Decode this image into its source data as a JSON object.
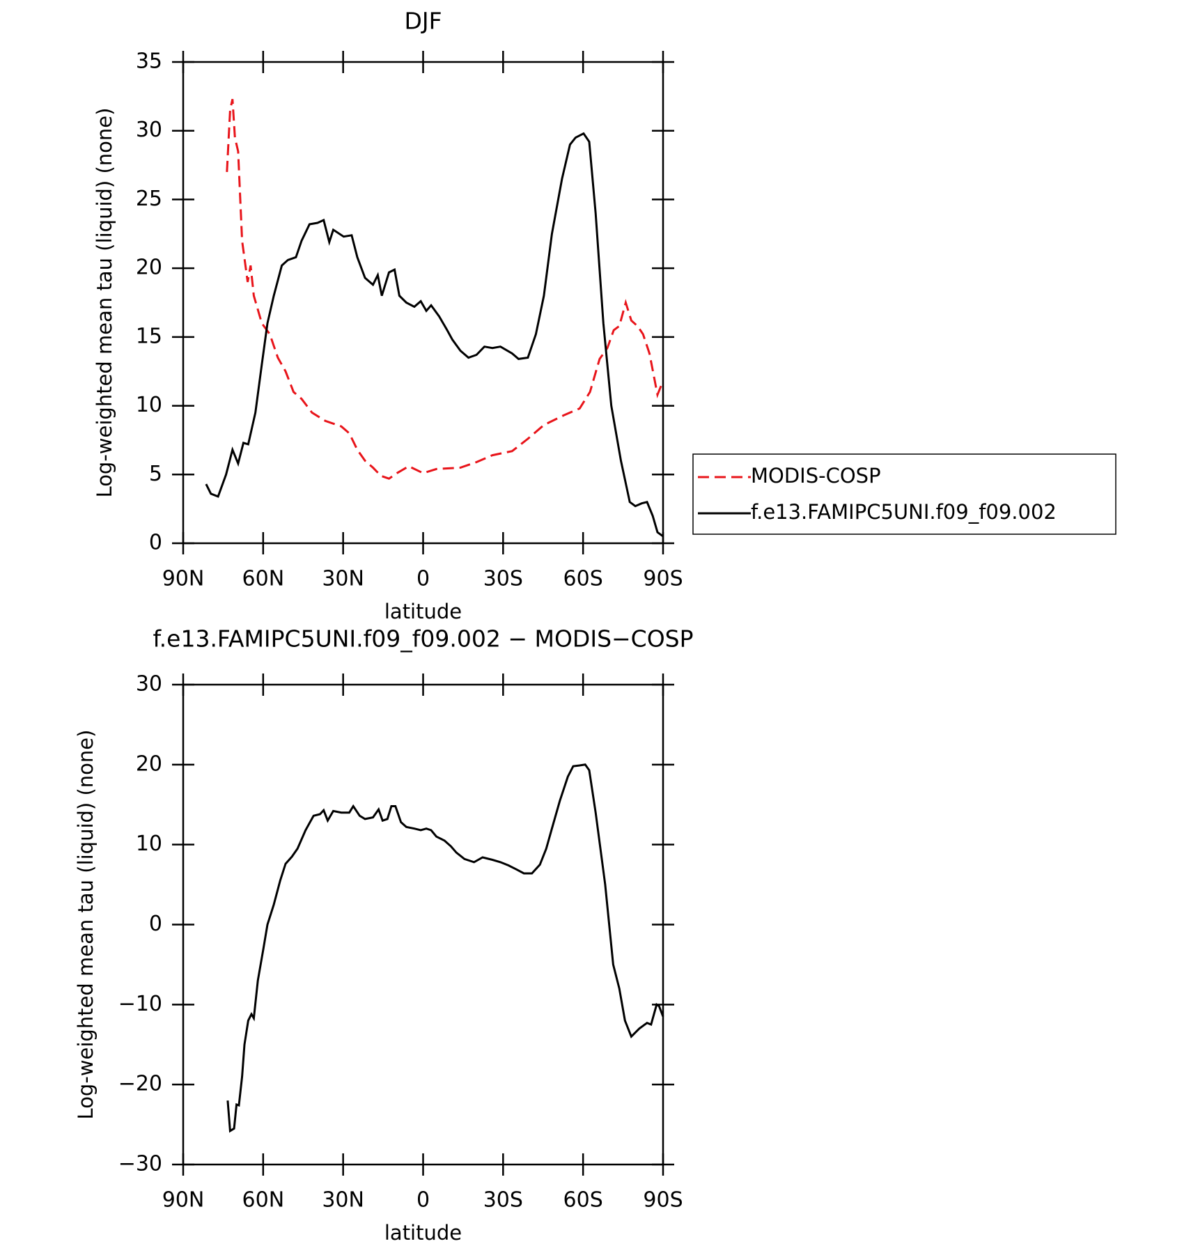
{
  "chart_data": [
    {
      "type": "line",
      "title": "DJF",
      "xlabel": "latitude",
      "ylabel": "Log-weighted mean tau (liquid) (none)",
      "xlim": [
        90,
        -90
      ],
      "xticks": [
        {
          "value": 90,
          "label": "90N"
        },
        {
          "value": 60,
          "label": "60N"
        },
        {
          "value": 30,
          "label": "30N"
        },
        0,
        {
          "value": -30,
          "label": "30S"
        },
        {
          "value": -60,
          "label": "60S"
        },
        {
          "value": -90,
          "label": "90S"
        }
      ],
      "ylim": [
        0,
        35
      ],
      "yticks": [
        0,
        5,
        10,
        15,
        20,
        25,
        30,
        35
      ],
      "legend": "right",
      "series": [
        {
          "name": "MODIS-COSP",
          "color": "#e8141a",
          "dash": true,
          "x": [
            73.6,
            72.4,
            71.5,
            70.6,
            69.4,
            67.9,
            65.8,
            64.7,
            63.5,
            60.5,
            57.5,
            54.5,
            51.6,
            48.6,
            45.6,
            41.7,
            36.7,
            30.7,
            27.7,
            24.7,
            21.8,
            18.8,
            15.8,
            12.8,
            9.8,
            5.4,
            0,
            -5,
            -14,
            -20,
            -26,
            -33.4,
            -39.3,
            -45.3,
            -52.7,
            -58.7,
            -62.6,
            -66.2,
            -69.1,
            -71.5,
            -73.6,
            -76,
            -78.1,
            -80.4,
            -82.5,
            -84.9,
            -87.9,
            -90
          ],
          "values": [
            27,
            31.5,
            32.3,
            29.5,
            28.5,
            22,
            19,
            20.2,
            18,
            16,
            15.2,
            13.5,
            12.5,
            11,
            10.5,
            9.5,
            8.9,
            8.5,
            8,
            6.8,
            6,
            5.5,
            4.9,
            4.7,
            5.1,
            5.6,
            5.1,
            5.4,
            5.5,
            5.9,
            6.4,
            6.7,
            7.6,
            8.6,
            9.3,
            9.8,
            11,
            13.4,
            14.2,
            15.5,
            15.8,
            17.5,
            16.2,
            15.8,
            15.2,
            13.8,
            10.8,
            11.8
          ]
        },
        {
          "name": "f.e13.FAMIPC5UNI.f09_f09.002",
          "color": "#000000",
          "dash": false,
          "x": [
            81.4,
            79.6,
            76.9,
            73.9,
            71.5,
            69.4,
            67.4,
            65.6,
            62.9,
            60.5,
            58.4,
            56,
            53,
            50.7,
            47.7,
            45.6,
            42.6,
            39.6,
            37.3,
            35.2,
            33.7,
            29.8,
            26.8,
            24.7,
            21.8,
            18.8,
            17,
            15.5,
            12.8,
            10.7,
            8.9,
            6.3,
            3.3,
            0.9,
            -1.2,
            -3,
            -6,
            -9,
            -11,
            -14,
            -17,
            -20,
            -23,
            -26,
            -29,
            -33.4,
            -35.8,
            -39.3,
            -42.3,
            -45.3,
            -48.3,
            -52.1,
            -55.1,
            -57.2,
            -60.2,
            -62.3,
            -64.7,
            -67.6,
            -70.6,
            -74.2,
            -77.5,
            -79.6,
            -82,
            -84,
            -86.1,
            -87.9,
            -90
          ],
          "values": [
            4.3,
            3.6,
            3.4,
            5,
            6.8,
            5.8,
            7.3,
            7.2,
            9.5,
            13,
            16,
            18,
            20.2,
            20.6,
            20.8,
            22,
            23.2,
            23.3,
            23.5,
            21.9,
            22.8,
            22.3,
            22.4,
            20.8,
            19.3,
            18.8,
            19.5,
            18,
            19.7,
            19.9,
            18,
            17.5,
            17.2,
            17.6,
            16.9,
            17.3,
            16.5,
            15.5,
            14.8,
            14,
            13.5,
            13.7,
            14.3,
            14.2,
            14.3,
            13.8,
            13.4,
            13.5,
            15.2,
            18,
            22.5,
            26.5,
            29,
            29.5,
            29.8,
            29.2,
            24,
            16,
            10,
            6,
            3,
            2.7,
            2.9,
            3,
            2,
            0.8,
            0.5
          ]
        }
      ]
    },
    {
      "type": "line",
      "title": "f.e13.FAMIPC5UNI.f09_f09.002 − MODIS−COSP",
      "xlabel": "latitude",
      "ylabel": "Log-weighted mean tau (liquid) (none)",
      "xlim": [
        90,
        -90
      ],
      "xticks": [
        {
          "value": 90,
          "label": "90N"
        },
        {
          "value": 60,
          "label": "60N"
        },
        {
          "value": 30,
          "label": "30N"
        },
        0,
        {
          "value": -30,
          "label": "30S"
        },
        {
          "value": -60,
          "label": "60S"
        },
        {
          "value": -90,
          "label": "90S"
        }
      ],
      "ylim": [
        -30,
        30
      ],
      "yticks": [
        {
          "value": -30,
          "label": "−30"
        },
        {
          "value": -20,
          "label": "−20"
        },
        {
          "value": -10,
          "label": "−10"
        },
        0,
        10,
        20,
        30
      ],
      "color": "#000000",
      "x": [
        73.3,
        72.4,
        70.9,
        70,
        69.1,
        67.9,
        67,
        65.6,
        64.4,
        63.5,
        62,
        59.9,
        58.4,
        56,
        53.6,
        51.6,
        49.2,
        47.1,
        44.1,
        41.1,
        38.7,
        37.3,
        35.8,
        33.7,
        30.7,
        27.7,
        26.2,
        23.8,
        21.8,
        18.8,
        16.7,
        15.2,
        13.4,
        11.9,
        10.4,
        8.3,
        6.3,
        3.3,
        0.9,
        -1.2,
        -3,
        -5,
        -8,
        -10.4,
        -12.5,
        -15.5,
        -19.1,
        -22.3,
        -26,
        -29,
        -32,
        -35,
        -37.8,
        -40.8,
        -43.8,
        -46.2,
        -48.3,
        -51.3,
        -54.3,
        -56.3,
        -58.7,
        -60.8,
        -62.3,
        -64.7,
        -68.3,
        -71.3,
        -73.6,
        -75.7,
        -78.1,
        -81.1,
        -84,
        -85.5,
        -87.6,
        -88.5,
        -90
      ],
      "values": [
        -22,
        -25.8,
        -25.5,
        -22.5,
        -22.6,
        -19,
        -15,
        -12,
        -11.2,
        -11.7,
        -7,
        -3,
        0,
        2.5,
        5.5,
        7.6,
        8.5,
        9.5,
        11.8,
        13.6,
        13.8,
        14.3,
        13,
        14.2,
        14,
        14,
        14.8,
        13.6,
        13.2,
        13.4,
        14.4,
        13,
        13.2,
        14.8,
        14.8,
        12.8,
        12.2,
        12,
        11.8,
        12,
        11.8,
        11,
        10.5,
        9.8,
        9,
        8.2,
        7.8,
        8.4,
        8.1,
        7.8,
        7.4,
        6.9,
        6.4,
        6.4,
        7.5,
        9.5,
        12,
        15.5,
        18.5,
        19.8,
        19.9,
        20,
        19.3,
        14,
        5,
        -5,
        -8,
        -12,
        -14,
        -13,
        -12.3,
        -12.5,
        -10,
        -10.2,
        -11.5
      ]
    }
  ]
}
